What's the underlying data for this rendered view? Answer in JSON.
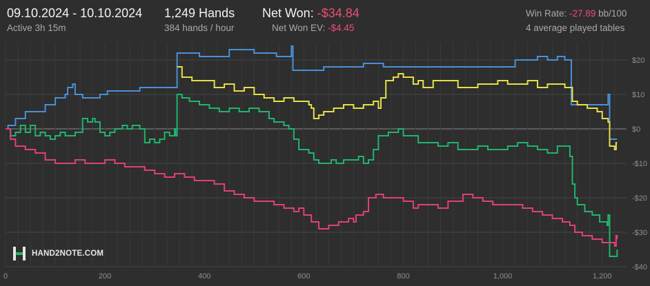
{
  "header": {
    "date_range": "09.10.2024 - 10.10.2024",
    "active": "Active 3h 15m",
    "hands": "1,249 Hands",
    "hands_rate": "384 hands / hour",
    "net_won_label": "Net Won:",
    "net_won_value": "-$34.84",
    "net_won_ev_label": "Net Won  EV:",
    "net_won_ev_value": "-$4.45",
    "win_rate_label": "Win Rate:",
    "win_rate_value": "-27.89",
    "win_rate_unit": "bb/100",
    "tables": "4 average played tables"
  },
  "logo": {
    "text": "HAND2NOTE.COM"
  },
  "colors": {
    "blue": "#4a90d9",
    "yellow": "#e6e04a",
    "green": "#1fb56e",
    "red": "#e0407a",
    "background": "#2e2e2e"
  },
  "chart_data": {
    "type": "line",
    "xlim": [
      0,
      1249
    ],
    "ylim": [
      -40,
      25
    ],
    "x_ticks": [
      0,
      200,
      400,
      600,
      800,
      1000,
      1200
    ],
    "x_tick_labels": [
      "0",
      "200",
      "400",
      "600",
      "800",
      "1,000",
      "1,200"
    ],
    "y_ticks": [
      20,
      10,
      0,
      -10,
      -20,
      -30,
      -40
    ],
    "y_tick_labels": [
      "$20",
      "$10",
      "$0",
      "-$10",
      "-$20",
      "-$30",
      "-$40"
    ],
    "grid": true,
    "series": [
      {
        "color": "#4a90d9",
        "points": [
          [
            0,
            0
          ],
          [
            5,
            1
          ],
          [
            20,
            3
          ],
          [
            40,
            5
          ],
          [
            60,
            5
          ],
          [
            80,
            7
          ],
          [
            100,
            9
          ],
          [
            120,
            10
          ],
          [
            125,
            12
          ],
          [
            135,
            13
          ],
          [
            140,
            10
          ],
          [
            155,
            9
          ],
          [
            170,
            9
          ],
          [
            190,
            10
          ],
          [
            205,
            11
          ],
          [
            230,
            11
          ],
          [
            250,
            11
          ],
          [
            270,
            12
          ],
          [
            300,
            12
          ],
          [
            330,
            12
          ],
          [
            342,
            12
          ],
          [
            345,
            22
          ],
          [
            360,
            22
          ],
          [
            375,
            22
          ],
          [
            390,
            21
          ],
          [
            410,
            21
          ],
          [
            430,
            21
          ],
          [
            450,
            23
          ],
          [
            475,
            23
          ],
          [
            500,
            22
          ],
          [
            520,
            22
          ],
          [
            545,
            21
          ],
          [
            570,
            21
          ],
          [
            575,
            24
          ],
          [
            578,
            17
          ],
          [
            600,
            17
          ],
          [
            620,
            17
          ],
          [
            640,
            18
          ],
          [
            660,
            18
          ],
          [
            680,
            18
          ],
          [
            700,
            18
          ],
          [
            720,
            19
          ],
          [
            740,
            19
          ],
          [
            760,
            18
          ],
          [
            780,
            18
          ],
          [
            800,
            18
          ],
          [
            820,
            18
          ],
          [
            840,
            18
          ],
          [
            860,
            18
          ],
          [
            880,
            18
          ],
          [
            900,
            18
          ],
          [
            920,
            18
          ],
          [
            940,
            18
          ],
          [
            960,
            18
          ],
          [
            980,
            18
          ],
          [
            1000,
            18
          ],
          [
            1020,
            18
          ],
          [
            1025,
            20
          ],
          [
            1050,
            20
          ],
          [
            1070,
            21
          ],
          [
            1090,
            20
          ],
          [
            1110,
            21
          ],
          [
            1125,
            20
          ],
          [
            1135,
            20
          ],
          [
            1138,
            7
          ],
          [
            1150,
            7
          ],
          [
            1175,
            7
          ],
          [
            1200,
            7
          ],
          [
            1210,
            7
          ],
          [
            1212,
            10
          ],
          [
            1215,
            -3
          ],
          [
            1228,
            -3
          ],
          [
            1230,
            -3
          ]
        ]
      },
      {
        "color": "#e6e04a",
        "points": [
          [
            345,
            18
          ],
          [
            355,
            15
          ],
          [
            375,
            14
          ],
          [
            395,
            14
          ],
          [
            420,
            12
          ],
          [
            440,
            13
          ],
          [
            460,
            11
          ],
          [
            480,
            12
          ],
          [
            500,
            10
          ],
          [
            520,
            9
          ],
          [
            540,
            8
          ],
          [
            560,
            9
          ],
          [
            580,
            8
          ],
          [
            600,
            8
          ],
          [
            610,
            7
          ],
          [
            615,
            6
          ],
          [
            620,
            3
          ],
          [
            630,
            4
          ],
          [
            640,
            5
          ],
          [
            660,
            6
          ],
          [
            680,
            7
          ],
          [
            700,
            6
          ],
          [
            720,
            7
          ],
          [
            740,
            8
          ],
          [
            750,
            6
          ],
          [
            755,
            9
          ],
          [
            765,
            14
          ],
          [
            780,
            15
          ],
          [
            790,
            16
          ],
          [
            800,
            15
          ],
          [
            820,
            13
          ],
          [
            830,
            14
          ],
          [
            840,
            12
          ],
          [
            850,
            12
          ],
          [
            860,
            14
          ],
          [
            880,
            14
          ],
          [
            900,
            14
          ],
          [
            910,
            12
          ],
          [
            930,
            12
          ],
          [
            950,
            13
          ],
          [
            970,
            13
          ],
          [
            990,
            14
          ],
          [
            1010,
            13
          ],
          [
            1030,
            13
          ],
          [
            1050,
            14
          ],
          [
            1070,
            12
          ],
          [
            1090,
            13
          ],
          [
            1110,
            13
          ],
          [
            1125,
            12
          ],
          [
            1135,
            12
          ],
          [
            1140,
            8
          ],
          [
            1150,
            7
          ],
          [
            1170,
            6
          ],
          [
            1190,
            5
          ],
          [
            1200,
            3
          ],
          [
            1212,
            2
          ],
          [
            1215,
            -5
          ],
          [
            1225,
            -6
          ],
          [
            1228,
            -4
          ],
          [
            1230,
            -4
          ]
        ]
      },
      {
        "color": "#1fb56e",
        "points": [
          [
            0,
            0
          ],
          [
            10,
            -2
          ],
          [
            20,
            -1
          ],
          [
            30,
            1
          ],
          [
            40,
            -1
          ],
          [
            50,
            1
          ],
          [
            60,
            -2
          ],
          [
            70,
            -1
          ],
          [
            80,
            -2
          ],
          [
            90,
            -3
          ],
          [
            100,
            -2
          ],
          [
            110,
            -1
          ],
          [
            120,
            -2
          ],
          [
            140,
            -1
          ],
          [
            155,
            3
          ],
          [
            165,
            2
          ],
          [
            175,
            3
          ],
          [
            180,
            2
          ],
          [
            190,
            -1
          ],
          [
            200,
            -2
          ],
          [
            210,
            -1
          ],
          [
            220,
            0
          ],
          [
            235,
            1
          ],
          [
            245,
            0
          ],
          [
            255,
            1
          ],
          [
            270,
            0
          ],
          [
            280,
            -4
          ],
          [
            290,
            -3
          ],
          [
            300,
            -4
          ],
          [
            310,
            -3
          ],
          [
            320,
            -1
          ],
          [
            330,
            -2
          ],
          [
            340,
            0
          ],
          [
            342,
            -2
          ],
          [
            345,
            10
          ],
          [
            355,
            9
          ],
          [
            370,
            8
          ],
          [
            390,
            7
          ],
          [
            410,
            6
          ],
          [
            430,
            5
          ],
          [
            450,
            6
          ],
          [
            470,
            5
          ],
          [
            490,
            6
          ],
          [
            510,
            5
          ],
          [
            520,
            5
          ],
          [
            530,
            3
          ],
          [
            540,
            2
          ],
          [
            560,
            1
          ],
          [
            570,
            0
          ],
          [
            580,
            -3
          ],
          [
            590,
            -6
          ],
          [
            610,
            -7
          ],
          [
            620,
            -9
          ],
          [
            630,
            -10
          ],
          [
            645,
            -10
          ],
          [
            655,
            -9
          ],
          [
            665,
            -10
          ],
          [
            680,
            -9
          ],
          [
            700,
            -9
          ],
          [
            710,
            -8
          ],
          [
            720,
            -10
          ],
          [
            730,
            -9
          ],
          [
            740,
            -6
          ],
          [
            745,
            -6
          ],
          [
            750,
            -2
          ],
          [
            770,
            -1
          ],
          [
            780,
            -1
          ],
          [
            790,
            0
          ],
          [
            800,
            -2
          ],
          [
            820,
            -2
          ],
          [
            830,
            -4
          ],
          [
            850,
            -4
          ],
          [
            870,
            -5
          ],
          [
            890,
            -4
          ],
          [
            910,
            -6
          ],
          [
            930,
            -6
          ],
          [
            950,
            -5
          ],
          [
            970,
            -6
          ],
          [
            990,
            -6
          ],
          [
            1010,
            -5
          ],
          [
            1030,
            -4
          ],
          [
            1050,
            -5
          ],
          [
            1070,
            -6
          ],
          [
            1090,
            -7
          ],
          [
            1110,
            -5
          ],
          [
            1130,
            -5
          ],
          [
            1135,
            -8
          ],
          [
            1140,
            -16
          ],
          [
            1145,
            -20
          ],
          [
            1150,
            -22
          ],
          [
            1165,
            -24
          ],
          [
            1180,
            -25
          ],
          [
            1195,
            -27
          ],
          [
            1210,
            -28
          ],
          [
            1212,
            -25
          ],
          [
            1215,
            -37
          ],
          [
            1228,
            -37
          ],
          [
            1230,
            -35
          ]
        ]
      },
      {
        "color": "#e0407a",
        "points": [
          [
            0,
            0
          ],
          [
            10,
            -3
          ],
          [
            20,
            -5
          ],
          [
            40,
            -6
          ],
          [
            60,
            -7
          ],
          [
            80,
            -9
          ],
          [
            100,
            -10
          ],
          [
            120,
            -10
          ],
          [
            140,
            -9
          ],
          [
            160,
            -10
          ],
          [
            180,
            -10
          ],
          [
            200,
            -9
          ],
          [
            220,
            -10
          ],
          [
            240,
            -11
          ],
          [
            260,
            -11
          ],
          [
            280,
            -12
          ],
          [
            300,
            -13
          ],
          [
            320,
            -14
          ],
          [
            340,
            -13
          ],
          [
            360,
            -14
          ],
          [
            380,
            -15
          ],
          [
            400,
            -15
          ],
          [
            420,
            -16
          ],
          [
            440,
            -18
          ],
          [
            460,
            -19
          ],
          [
            480,
            -20
          ],
          [
            500,
            -21
          ],
          [
            520,
            -21
          ],
          [
            540,
            -22
          ],
          [
            560,
            -23
          ],
          [
            580,
            -24
          ],
          [
            590,
            -23
          ],
          [
            600,
            -25
          ],
          [
            615,
            -27
          ],
          [
            630,
            -29
          ],
          [
            640,
            -29
          ],
          [
            650,
            -28
          ],
          [
            670,
            -27
          ],
          [
            690,
            -26
          ],
          [
            700,
            -27
          ],
          [
            705,
            -25
          ],
          [
            720,
            -24
          ],
          [
            730,
            -20
          ],
          [
            745,
            -19
          ],
          [
            760,
            -20
          ],
          [
            780,
            -20
          ],
          [
            800,
            -21
          ],
          [
            820,
            -23
          ],
          [
            830,
            -22
          ],
          [
            850,
            -22
          ],
          [
            870,
            -23
          ],
          [
            890,
            -21
          ],
          [
            900,
            -21
          ],
          [
            920,
            -19
          ],
          [
            940,
            -20
          ],
          [
            960,
            -21
          ],
          [
            980,
            -22
          ],
          [
            1000,
            -22
          ],
          [
            1020,
            -22
          ],
          [
            1040,
            -23
          ],
          [
            1060,
            -24
          ],
          [
            1080,
            -25
          ],
          [
            1100,
            -26
          ],
          [
            1120,
            -27
          ],
          [
            1135,
            -28
          ],
          [
            1145,
            -30
          ],
          [
            1160,
            -31
          ],
          [
            1180,
            -32
          ],
          [
            1200,
            -33
          ],
          [
            1215,
            -33
          ],
          [
            1225,
            -34
          ],
          [
            1228,
            -31
          ],
          [
            1230,
            -32
          ]
        ]
      }
    ]
  }
}
